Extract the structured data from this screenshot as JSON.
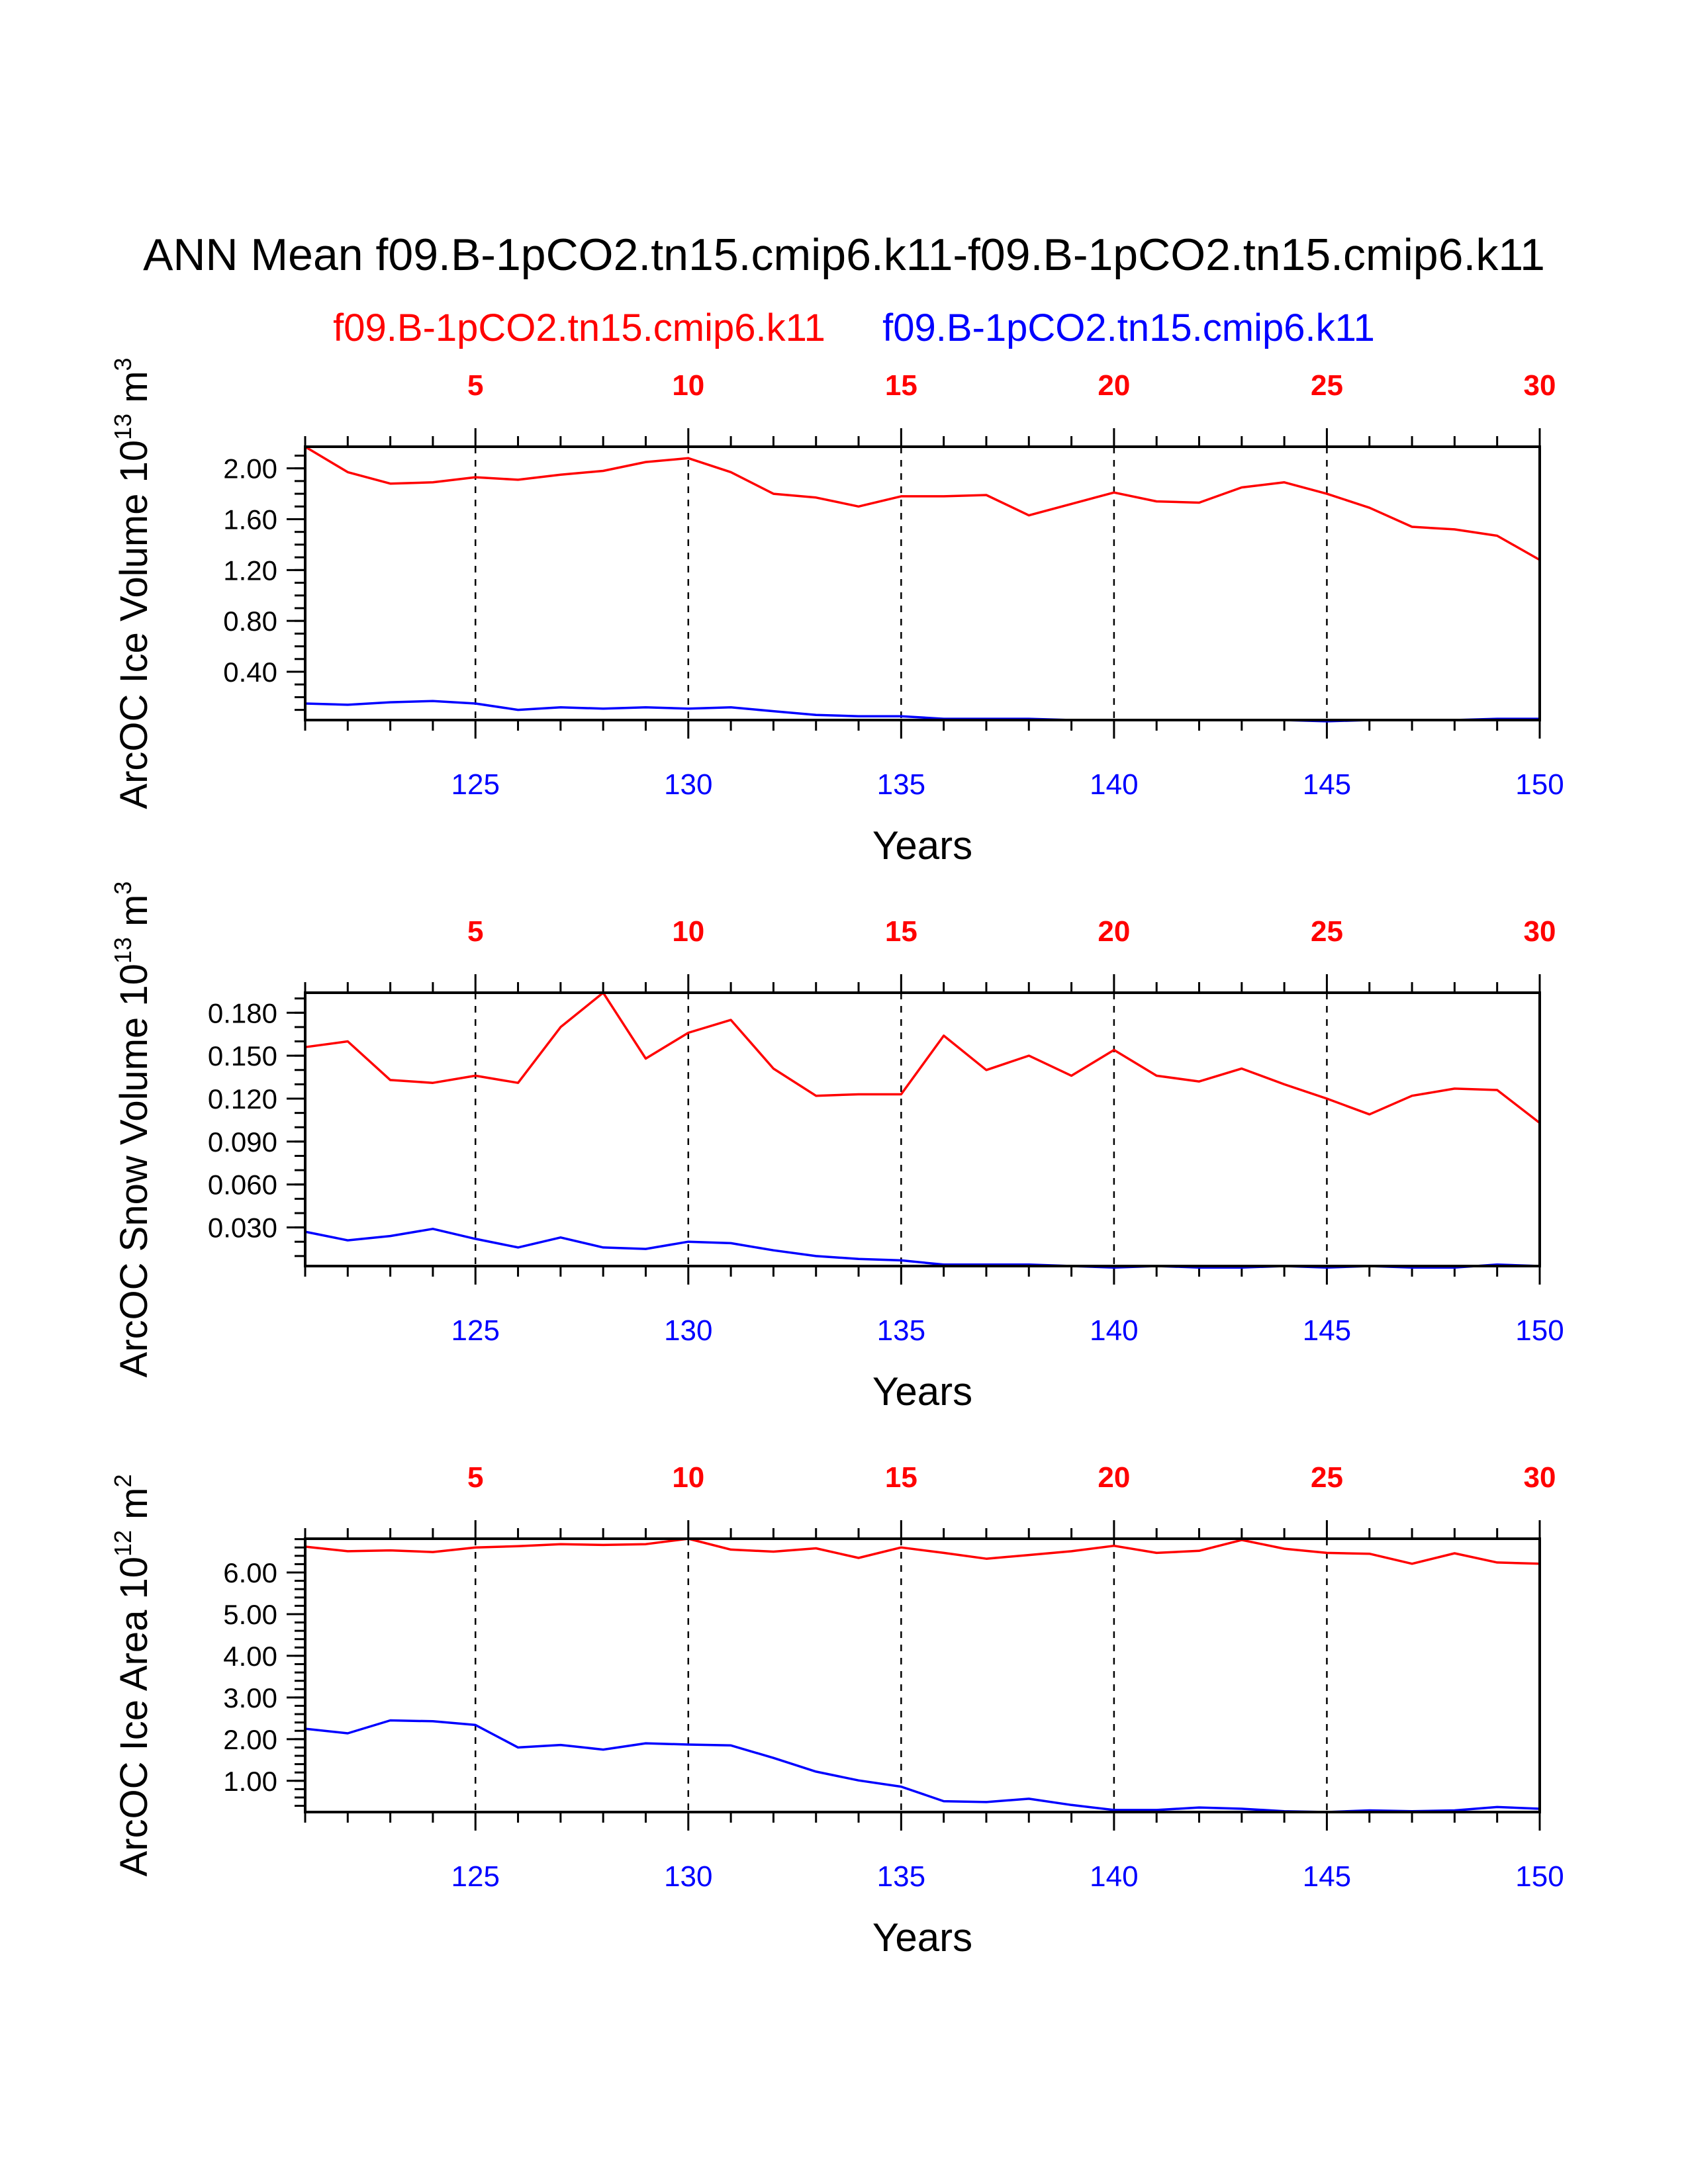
{
  "title": "ANN Mean f09.B-1pCO2.tn15.cmip6.k11-f09.B-1pCO2.tn15.cmip6.k11",
  "legend": {
    "red_label": "f09.B-1pCO2.tn15.cmip6.k11",
    "blue_label": "f09.B-1pCO2.tn15.cmip6.k11"
  },
  "colors": {
    "red": "#ff0000",
    "blue": "#0000ff",
    "axis": "#000000"
  },
  "chart_data": [
    {
      "type": "line",
      "title": "",
      "ylabel_main": "ArcOC Ice Volume 10",
      "ylabel_exp": "13",
      "ylabel_unit": " m",
      "ylabel_unit_exp": "3",
      "xlabel": "Years",
      "x_bottom_ticks": [
        "125",
        "130",
        "135",
        "140",
        "145",
        "150"
      ],
      "x_top_ticks": [
        "5",
        "10",
        "15",
        "20",
        "25",
        "30"
      ],
      "x": [
        121,
        122,
        123,
        124,
        125,
        126,
        127,
        128,
        129,
        130,
        131,
        132,
        133,
        134,
        135,
        136,
        137,
        138,
        139,
        140,
        141,
        142,
        143,
        144,
        145,
        146,
        147,
        148,
        149,
        150
      ],
      "xlim": [
        121,
        150
      ],
      "ylim": [
        0.02,
        2.17
      ],
      "yticks": [
        "0.40",
        "0.80",
        "1.20",
        "1.60",
        "2.00"
      ],
      "yminor_step": 0.1,
      "series": [
        {
          "name": "f09.B-1pCO2.tn15.cmip6.k11",
          "color": "red",
          "values": [
            2.17,
            1.97,
            1.88,
            1.89,
            1.93,
            1.91,
            1.95,
            1.98,
            2.05,
            2.08,
            1.97,
            1.8,
            1.77,
            1.7,
            1.78,
            1.78,
            1.79,
            1.63,
            1.72,
            1.81,
            1.74,
            1.73,
            1.85,
            1.89,
            1.8,
            1.69,
            1.54,
            1.52,
            1.47,
            1.28
          ]
        },
        {
          "name": "f09.B-1pCO2.tn15.cmip6.k11",
          "color": "blue",
          "values": [
            0.15,
            0.14,
            0.16,
            0.17,
            0.15,
            0.1,
            0.12,
            0.11,
            0.12,
            0.11,
            0.12,
            0.09,
            0.06,
            0.05,
            0.05,
            0.03,
            0.03,
            0.03,
            0.02,
            0.02,
            0.02,
            0.02,
            0.02,
            0.02,
            0.01,
            0.02,
            0.02,
            0.02,
            0.03,
            0.03
          ]
        }
      ]
    },
    {
      "type": "line",
      "title": "",
      "ylabel_main": "ArcOC Snow Volume 10",
      "ylabel_exp": "13",
      "ylabel_unit": " m",
      "ylabel_unit_exp": "3",
      "xlabel": "Years",
      "x_bottom_ticks": [
        "125",
        "130",
        "135",
        "140",
        "145",
        "150"
      ],
      "x_top_ticks": [
        "5",
        "10",
        "15",
        "20",
        "25",
        "30"
      ],
      "x": [
        121,
        122,
        123,
        124,
        125,
        126,
        127,
        128,
        129,
        130,
        131,
        132,
        133,
        134,
        135,
        136,
        137,
        138,
        139,
        140,
        141,
        142,
        143,
        144,
        145,
        146,
        147,
        148,
        149,
        150
      ],
      "xlim": [
        121,
        150
      ],
      "ylim": [
        0.003,
        0.194
      ],
      "yticks": [
        "0.030",
        "0.060",
        "0.090",
        "0.120",
        "0.150",
        "0.180"
      ],
      "yminor_step": 0.01,
      "series": [
        {
          "name": "f09.B-1pCO2.tn15.cmip6.k11",
          "color": "red",
          "values": [
            0.156,
            0.16,
            0.133,
            0.131,
            0.136,
            0.131,
            0.17,
            0.194,
            0.148,
            0.166,
            0.175,
            0.141,
            0.122,
            0.123,
            0.123,
            0.164,
            0.14,
            0.15,
            0.136,
            0.154,
            0.136,
            0.132,
            0.141,
            0.13,
            0.12,
            0.109,
            0.122,
            0.127,
            0.126,
            0.103
          ]
        },
        {
          "name": "f09.B-1pCO2.tn15.cmip6.k11",
          "color": "blue",
          "values": [
            0.027,
            0.021,
            0.024,
            0.029,
            0.022,
            0.016,
            0.023,
            0.016,
            0.015,
            0.02,
            0.019,
            0.014,
            0.01,
            0.008,
            0.007,
            0.004,
            0.004,
            0.004,
            0.003,
            0.002,
            0.003,
            0.002,
            0.002,
            0.003,
            0.002,
            0.003,
            0.002,
            0.002,
            0.004,
            0.003
          ]
        }
      ]
    },
    {
      "type": "line",
      "title": "",
      "ylabel_main": "ArcOC Ice Area 10",
      "ylabel_exp": "12",
      "ylabel_unit": " m",
      "ylabel_unit_exp": "2",
      "xlabel": "Years",
      "x_bottom_ticks": [
        "125",
        "130",
        "135",
        "140",
        "145",
        "150"
      ],
      "x_top_ticks": [
        "5",
        "10",
        "15",
        "20",
        "25",
        "30"
      ],
      "x": [
        121,
        122,
        123,
        124,
        125,
        126,
        127,
        128,
        129,
        130,
        131,
        132,
        133,
        134,
        135,
        136,
        137,
        138,
        139,
        140,
        141,
        142,
        143,
        144,
        145,
        146,
        147,
        148,
        149,
        150
      ],
      "xlim": [
        121,
        150
      ],
      "ylim": [
        0.25,
        6.81
      ],
      "yticks": [
        "1.00",
        "2.00",
        "3.00",
        "4.00",
        "5.00",
        "6.00"
      ],
      "yminor_step": 0.2,
      "series": [
        {
          "name": "f09.B-1pCO2.tn15.cmip6.k11",
          "color": "red",
          "values": [
            6.62,
            6.51,
            6.53,
            6.49,
            6.6,
            6.63,
            6.68,
            6.66,
            6.68,
            6.81,
            6.55,
            6.5,
            6.58,
            6.35,
            6.6,
            6.47,
            6.33,
            6.42,
            6.51,
            6.64,
            6.47,
            6.52,
            6.78,
            6.57,
            6.47,
            6.45,
            6.21,
            6.46,
            6.24,
            6.21
          ]
        },
        {
          "name": "f09.B-1pCO2.tn15.cmip6.k11",
          "color": "blue",
          "values": [
            2.25,
            2.14,
            2.45,
            2.43,
            2.34,
            1.8,
            1.86,
            1.75,
            1.9,
            1.87,
            1.85,
            1.55,
            1.22,
            1.01,
            0.86,
            0.51,
            0.49,
            0.57,
            0.42,
            0.3,
            0.3,
            0.36,
            0.33,
            0.27,
            0.25,
            0.29,
            0.27,
            0.29,
            0.37,
            0.33
          ]
        }
      ]
    }
  ]
}
